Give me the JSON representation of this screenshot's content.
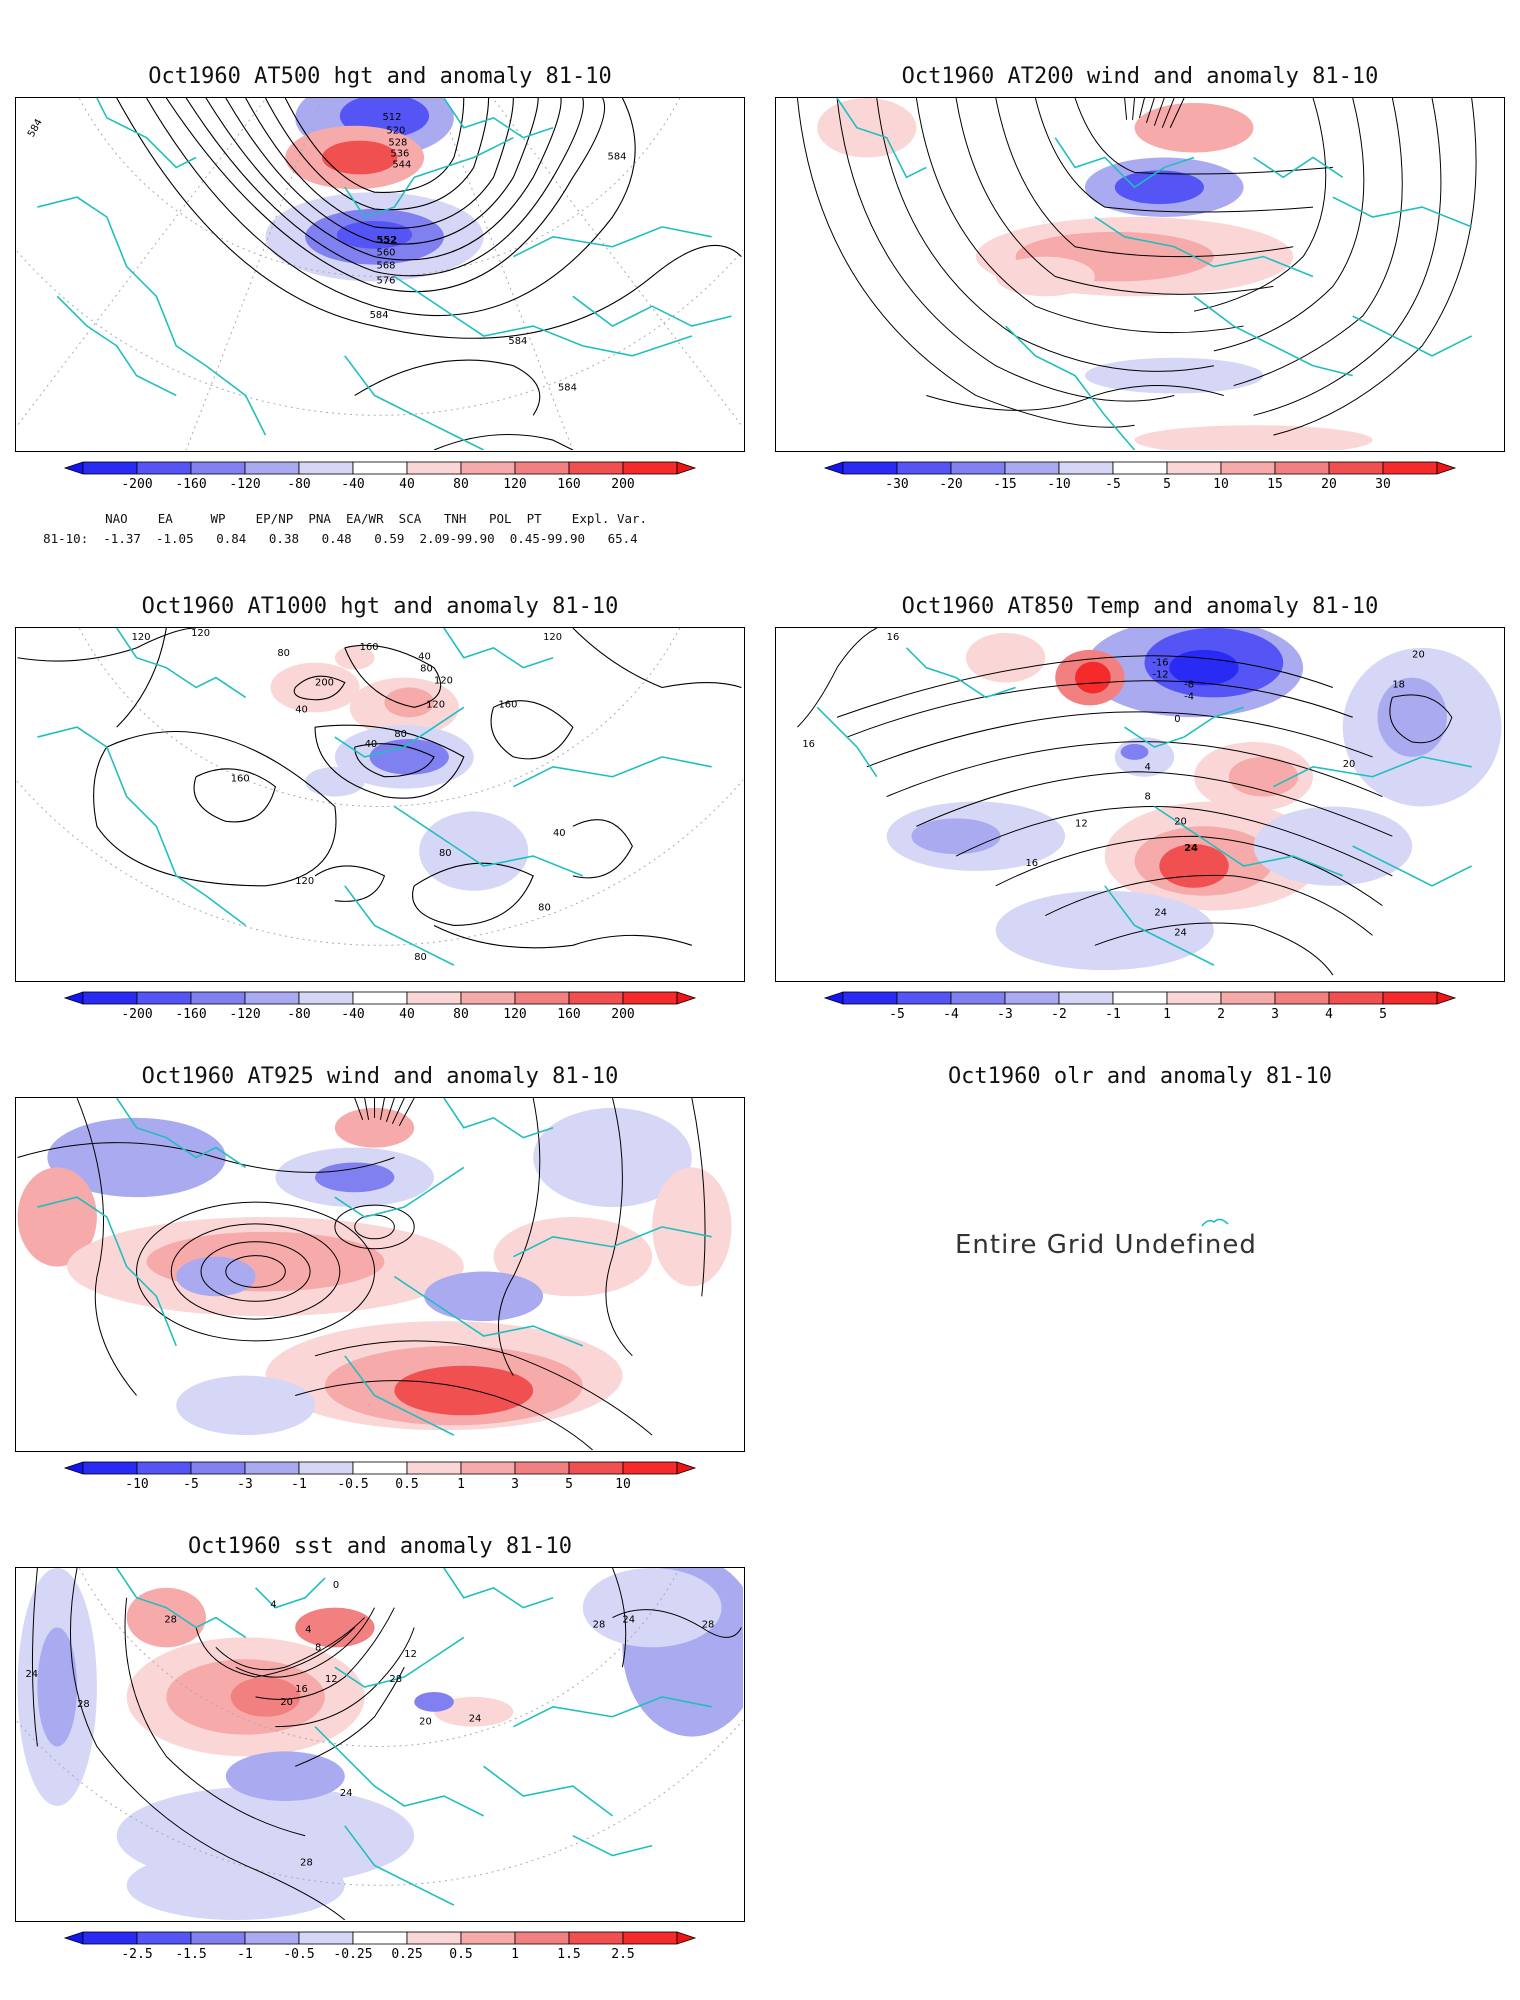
{
  "panels": [
    {
      "title": "Oct1960 AT500 hgt and anomaly 81-10",
      "colorbar": [
        "-200",
        "-160",
        "-120",
        "-80",
        "-40",
        "40",
        "80",
        "120",
        "160",
        "200"
      ],
      "contour_labels": [
        "512",
        "520",
        "528",
        "536",
        "544",
        "552",
        "560",
        "568",
        "576",
        "584",
        "584",
        "584",
        "584",
        "584"
      ]
    },
    {
      "title": "Oct1960 AT200 wind and anomaly 81-10",
      "colorbar": [
        "-30",
        "-20",
        "-15",
        "-10",
        "-5",
        "5",
        "10",
        "15",
        "20",
        "30"
      ]
    },
    {
      "title": "Oct1960 AT1000 hgt and anomaly 81-10",
      "colorbar": [
        "-200",
        "-160",
        "-120",
        "-80",
        "-40",
        "40",
        "80",
        "120",
        "160",
        "200"
      ],
      "contour_labels": [
        "120",
        "120",
        "120",
        "80",
        "160",
        "200",
        "40",
        "80",
        "120",
        "160",
        "120",
        "40",
        "80",
        "160",
        "40",
        "120",
        "80",
        "80",
        "40",
        "80"
      ]
    },
    {
      "title": "Oct1960 AT850 Temp and anomaly 81-10",
      "colorbar": [
        "-5",
        "-4",
        "-3",
        "-2",
        "-1",
        "1",
        "2",
        "3",
        "4",
        "5"
      ],
      "contour_labels": [
        "16",
        "16",
        "-16",
        "-12",
        "-8",
        "-4",
        "0",
        "4",
        "8",
        "12",
        "16",
        "20",
        "24",
        "20",
        "24",
        "24",
        "20",
        "18"
      ]
    },
    {
      "title": "Oct1960 AT925 wind and anomaly 81-10",
      "colorbar": [
        "-10",
        "-5",
        "-3",
        "-1",
        "-0.5",
        "0.5",
        "1",
        "3",
        "5",
        "10"
      ]
    },
    {
      "title": "Oct1960 olr and anomaly 81-10",
      "message": "Entire Grid Undefined"
    },
    {
      "title": "Oct1960 sst and anomaly 81-10",
      "colorbar": [
        "-2.5",
        "-1.5",
        "-1",
        "-0.5",
        "-0.25",
        "0.25",
        "0.5",
        "1",
        "1.5",
        "2.5"
      ],
      "contour_labels": [
        "24",
        "28",
        "28",
        "4",
        "0",
        "4",
        "8",
        "12",
        "16",
        "20",
        "24",
        "28",
        "28",
        "28",
        "24",
        "28",
        "20",
        "24",
        "12"
      ]
    }
  ],
  "indices": {
    "header": [
      "NAO",
      "EA",
      "WP",
      "EP/NP",
      "PNA",
      "EA/WR",
      "SCA",
      "TNH",
      "POL",
      "PT",
      "Expl. Var."
    ],
    "row_label": "81-10:",
    "values": [
      "-1.37",
      "-1.05",
      "0.84",
      "0.38",
      "0.48",
      "0.59",
      "2.09-99.90",
      "",
      "0.45-99.90",
      "",
      "65.4"
    ]
  },
  "colors": {
    "coast": "#1fbfbf",
    "blue": [
      "#2a2af5",
      "#5555f5",
      "#8080f0",
      "#aaaaf0",
      "#d6d6f6"
    ],
    "red": [
      "#fad6d6",
      "#f6aaaa",
      "#f28080",
      "#f05050",
      "#f52a2a"
    ],
    "contour": "#000000"
  }
}
